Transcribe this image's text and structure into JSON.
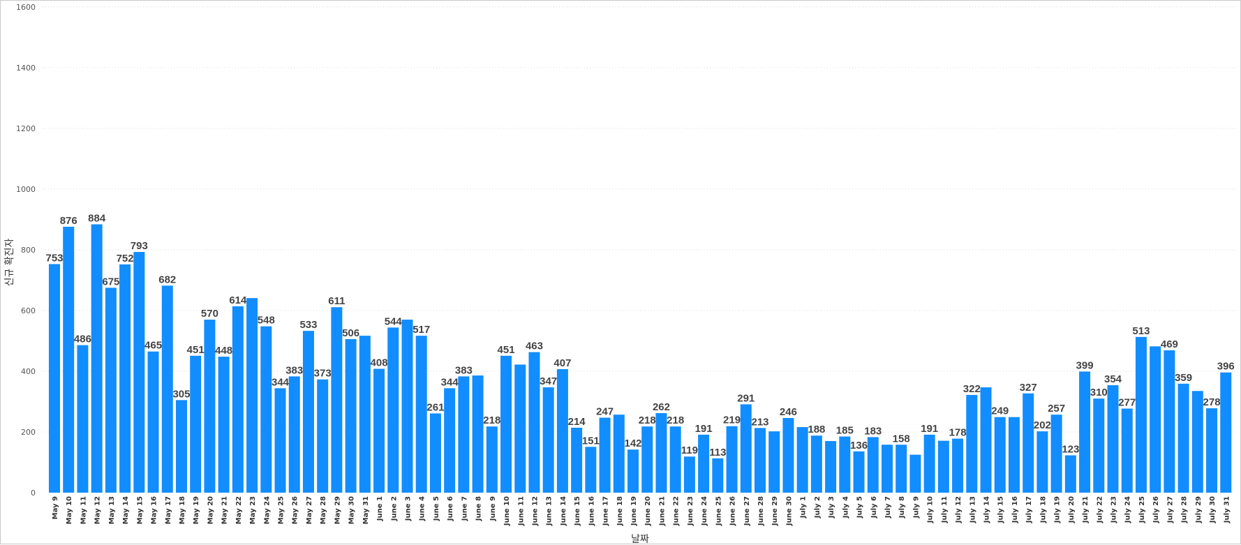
{
  "chart_data": {
    "type": "bar",
    "title": "",
    "xlabel": "날짜",
    "ylabel": "신규 확진자",
    "ylim": [
      0,
      1600
    ],
    "yticks": [
      0,
      200,
      400,
      600,
      800,
      1000,
      1200,
      1400,
      1600
    ],
    "grid": true,
    "bar_color": "#118DFF",
    "categories": [
      "May 9",
      "May 10",
      "May 11",
      "May 12",
      "May 13",
      "May 14",
      "May 15",
      "May 16",
      "May 17",
      "May 18",
      "May 19",
      "May 20",
      "May 21",
      "May 22",
      "May 23",
      "May 24",
      "May 25",
      "May 26",
      "May 27",
      "May 28",
      "May 29",
      "May 30",
      "May 31",
      "June 1",
      "June 2",
      "June 3",
      "June 4",
      "June 5",
      "June 6",
      "June 7",
      "June 8",
      "June 9",
      "June 10",
      "June 11",
      "June 12",
      "June 13",
      "June 14",
      "June 15",
      "June 16",
      "June 17",
      "June 18",
      "June 19",
      "June 20",
      "June 21",
      "June 22",
      "June 23",
      "June 24",
      "June 25",
      "June 26",
      "June 27",
      "June 28",
      "June 29",
      "June 30",
      "July 1",
      "July 2",
      "July 3",
      "July 4",
      "July 5",
      "July 6",
      "July 7",
      "July 8",
      "July 9",
      "July 10",
      "July 11",
      "July 12",
      "July 13",
      "July 14",
      "July 15",
      "July 16",
      "July 17",
      "July 18",
      "July 19",
      "July 20",
      "July 21",
      "July 22",
      "July 23",
      "July 24",
      "July 25",
      "July 26",
      "July 27",
      "July 28",
      "July 29",
      "July 30",
      "July 31"
    ],
    "values": [
      753,
      876,
      486,
      884,
      675,
      752,
      793,
      465,
      682,
      305,
      451,
      570,
      448,
      614,
      641,
      548,
      344,
      383,
      533,
      373,
      611,
      506,
      517,
      408,
      544,
      570,
      517,
      261,
      344,
      383,
      386,
      218,
      451,
      422,
      463,
      347,
      407,
      214,
      151,
      247,
      257,
      142,
      218,
      262,
      218,
      119,
      191,
      113,
      219,
      291,
      213,
      202,
      246,
      216,
      188,
      170,
      185,
      136,
      183,
      158,
      158,
      125,
      191,
      171,
      178,
      322,
      347,
      249,
      249,
      327,
      202,
      257,
      123,
      399,
      310,
      354,
      277,
      513,
      482,
      469,
      359,
      335,
      278,
      396
    ],
    "data_labels": [
      {
        "i": 0,
        "text": "753"
      },
      {
        "i": 1,
        "text": "876"
      },
      {
        "i": 2,
        "text": "486"
      },
      {
        "i": 3,
        "text": "884"
      },
      {
        "i": 4,
        "text": "675"
      },
      {
        "i": 5,
        "text": "752"
      },
      {
        "i": 6,
        "text": "793"
      },
      {
        "i": 7,
        "text": "465"
      },
      {
        "i": 8,
        "text": "682"
      },
      {
        "i": 9,
        "text": "305"
      },
      {
        "i": 10,
        "text": "451"
      },
      {
        "i": 11,
        "text": "570"
      },
      {
        "i": 12,
        "text": "448"
      },
      {
        "i": 13,
        "text": "614"
      },
      {
        "i": 15,
        "text": "548"
      },
      {
        "i": 16,
        "text": "344"
      },
      {
        "i": 17,
        "text": "383"
      },
      {
        "i": 18,
        "text": "533"
      },
      {
        "i": 19,
        "text": "373"
      },
      {
        "i": 20,
        "text": "611"
      },
      {
        "i": 21,
        "text": "506"
      },
      {
        "i": 23,
        "text": "408"
      },
      {
        "i": 24,
        "text": "544"
      },
      {
        "i": 26,
        "text": "517"
      },
      {
        "i": 27,
        "text": "261"
      },
      {
        "i": 28,
        "text": "344"
      },
      {
        "i": 29,
        "text": "383"
      },
      {
        "i": 31,
        "text": "218"
      },
      {
        "i": 32,
        "text": "451"
      },
      {
        "i": 34,
        "text": "463"
      },
      {
        "i": 35,
        "text": "347"
      },
      {
        "i": 36,
        "text": "407"
      },
      {
        "i": 37,
        "text": "214"
      },
      {
        "i": 38,
        "text": "151"
      },
      {
        "i": 39,
        "text": "247"
      },
      {
        "i": 41,
        "text": "142"
      },
      {
        "i": 42,
        "text": "218"
      },
      {
        "i": 43,
        "text": "262"
      },
      {
        "i": 44,
        "text": "218"
      },
      {
        "i": 45,
        "text": "119"
      },
      {
        "i": 46,
        "text": "191"
      },
      {
        "i": 47,
        "text": "113"
      },
      {
        "i": 48,
        "text": "219"
      },
      {
        "i": 49,
        "text": "291"
      },
      {
        "i": 50,
        "text": "213"
      },
      {
        "i": 52,
        "text": "246"
      },
      {
        "i": 54,
        "text": "188"
      },
      {
        "i": 56,
        "text": "185"
      },
      {
        "i": 57,
        "text": "136"
      },
      {
        "i": 58,
        "text": "183"
      },
      {
        "i": 60,
        "text": "158"
      },
      {
        "i": 62,
        "text": "191"
      },
      {
        "i": 64,
        "text": "178"
      },
      {
        "i": 65,
        "text": "322"
      },
      {
        "i": 67,
        "text": "249"
      },
      {
        "i": 69,
        "text": "327"
      },
      {
        "i": 70,
        "text": "202"
      },
      {
        "i": 71,
        "text": "257"
      },
      {
        "i": 72,
        "text": "123"
      },
      {
        "i": 73,
        "text": "399"
      },
      {
        "i": 74,
        "text": "310"
      },
      {
        "i": 75,
        "text": "354"
      },
      {
        "i": 76,
        "text": "277"
      },
      {
        "i": 77,
        "text": "513"
      },
      {
        "i": 79,
        "text": "469"
      },
      {
        "i": 80,
        "text": "359"
      },
      {
        "i": 82,
        "text": "278"
      },
      {
        "i": 83,
        "text": "396"
      }
    ]
  }
}
